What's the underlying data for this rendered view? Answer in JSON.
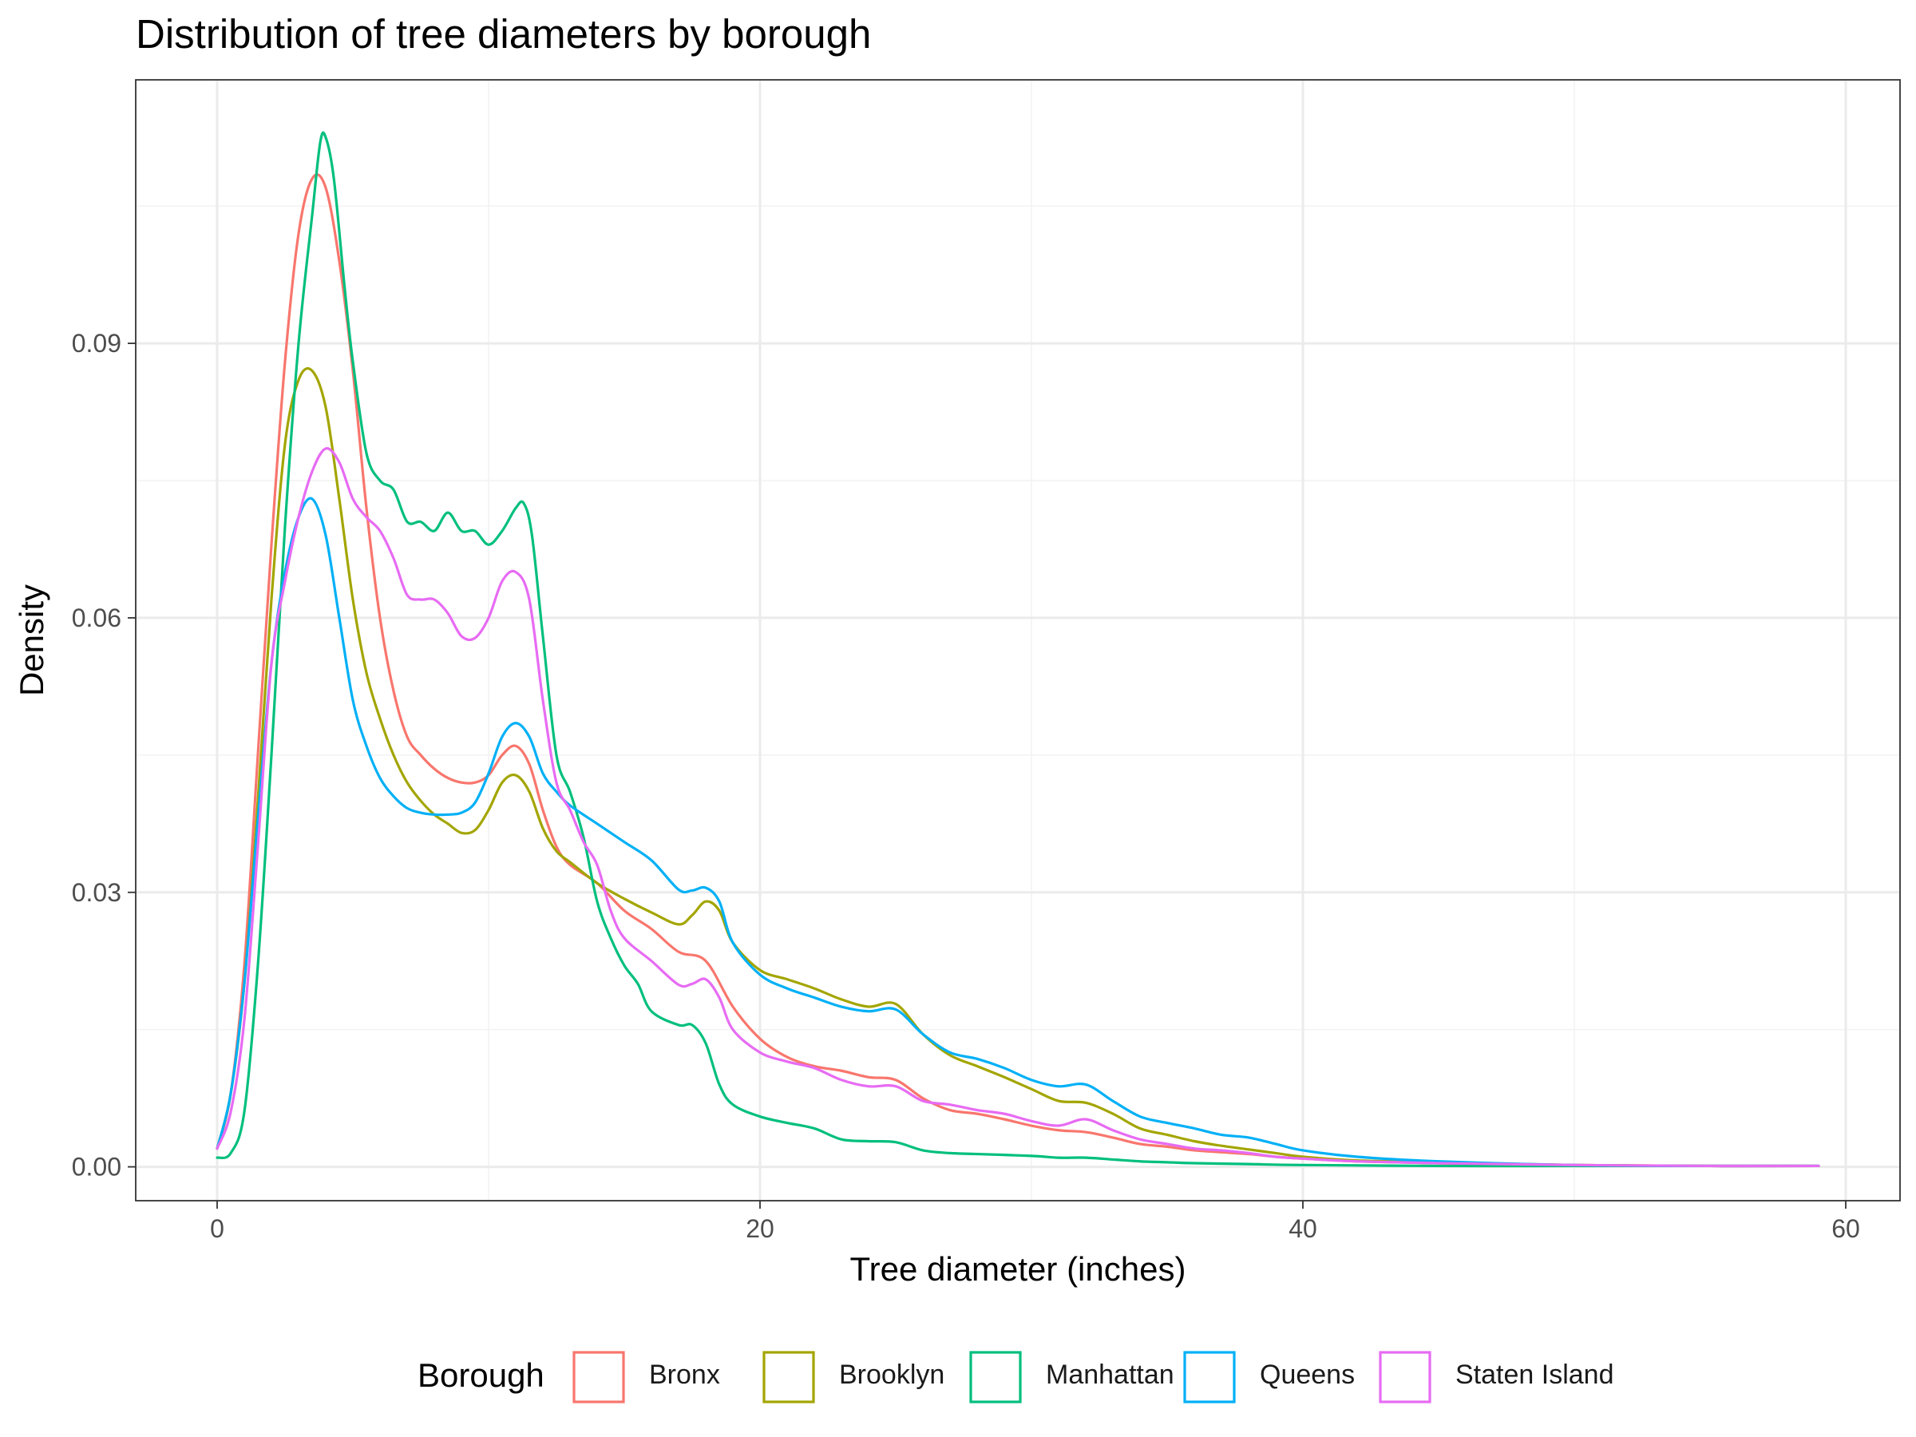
{
  "chart_data": {
    "type": "line",
    "title": "Distribution of tree diameters by borough",
    "xlabel": "Tree diameter (inches)",
    "ylabel": "Density",
    "xlim": [
      -3,
      62
    ],
    "ylim": [
      -0.0037,
      0.1188
    ],
    "x_ticks": [
      0,
      20,
      40,
      60
    ],
    "x_tick_labels": [
      "0",
      "20",
      "40",
      "60"
    ],
    "x_minor_ticks": [
      10,
      30,
      50
    ],
    "y_ticks": [
      0,
      0.03,
      0.06,
      0.09
    ],
    "y_tick_labels": [
      "0.00",
      "0.03",
      "0.06",
      "0.09"
    ],
    "y_minor_ticks": [
      0.015,
      0.045,
      0.075,
      0.105
    ],
    "grid": true,
    "legend": {
      "title": "Borough",
      "position": "bottom"
    },
    "series": [
      {
        "name": "Bronx",
        "color": "#F8766D",
        "points": [
          [
            0,
            0.002
          ],
          [
            0.5,
            0.008
          ],
          [
            1,
            0.022
          ],
          [
            1.5,
            0.045
          ],
          [
            2,
            0.068
          ],
          [
            2.5,
            0.088
          ],
          [
            3,
            0.102
          ],
          [
            3.5,
            0.108
          ],
          [
            4,
            0.107
          ],
          [
            4.5,
            0.099
          ],
          [
            5,
            0.087
          ],
          [
            5.5,
            0.072
          ],
          [
            6,
            0.06
          ],
          [
            6.5,
            0.052
          ],
          [
            7,
            0.047
          ],
          [
            7.5,
            0.045
          ],
          [
            8,
            0.0435
          ],
          [
            8.5,
            0.0425
          ],
          [
            9,
            0.042
          ],
          [
            9.5,
            0.042
          ],
          [
            10,
            0.0428
          ],
          [
            10.5,
            0.045
          ],
          [
            11,
            0.046
          ],
          [
            11.5,
            0.044
          ],
          [
            12,
            0.039
          ],
          [
            12.5,
            0.035
          ],
          [
            13,
            0.033
          ],
          [
            14,
            0.031
          ],
          [
            15,
            0.028
          ],
          [
            16,
            0.026
          ],
          [
            17,
            0.0235
          ],
          [
            18,
            0.0225
          ],
          [
            19,
            0.0175
          ],
          [
            20,
            0.014
          ],
          [
            21,
            0.012
          ],
          [
            22,
            0.011
          ],
          [
            23,
            0.0105
          ],
          [
            24,
            0.0098
          ],
          [
            25,
            0.0095
          ],
          [
            26,
            0.0075
          ],
          [
            27,
            0.0062
          ],
          [
            28,
            0.0058
          ],
          [
            29,
            0.0052
          ],
          [
            30,
            0.0045
          ],
          [
            31,
            0.004
          ],
          [
            32,
            0.0038
          ],
          [
            33,
            0.0032
          ],
          [
            34,
            0.0025
          ],
          [
            35,
            0.0022
          ],
          [
            36,
            0.0018
          ],
          [
            37,
            0.0016
          ],
          [
            38,
            0.0014
          ],
          [
            39,
            0.0011
          ],
          [
            40,
            0.0009
          ],
          [
            42,
            0.0006
          ],
          [
            45,
            0.0004
          ],
          [
            50,
            0.0002
          ],
          [
            55,
            0.0001
          ],
          [
            59,
            0.0001
          ]
        ]
      },
      {
        "name": "Brooklyn",
        "color": "#A3A500",
        "points": [
          [
            0,
            0.002
          ],
          [
            0.5,
            0.008
          ],
          [
            1,
            0.02
          ],
          [
            1.5,
            0.04
          ],
          [
            2,
            0.062
          ],
          [
            2.5,
            0.079
          ],
          [
            3,
            0.086
          ],
          [
            3.5,
            0.087
          ],
          [
            4,
            0.083
          ],
          [
            4.5,
            0.073
          ],
          [
            5,
            0.062
          ],
          [
            5.5,
            0.054
          ],
          [
            6,
            0.049
          ],
          [
            6.5,
            0.045
          ],
          [
            7,
            0.042
          ],
          [
            7.5,
            0.04
          ],
          [
            8,
            0.0385
          ],
          [
            8.5,
            0.0375
          ],
          [
            9,
            0.0365
          ],
          [
            9.5,
            0.0368
          ],
          [
            10,
            0.039
          ],
          [
            10.5,
            0.042
          ],
          [
            11,
            0.0428
          ],
          [
            11.5,
            0.041
          ],
          [
            12,
            0.037
          ],
          [
            12.5,
            0.0345
          ],
          [
            13,
            0.0333
          ],
          [
            14,
            0.031
          ],
          [
            15,
            0.0293
          ],
          [
            16,
            0.0278
          ],
          [
            17,
            0.0265
          ],
          [
            17.5,
            0.0275
          ],
          [
            18,
            0.029
          ],
          [
            18.5,
            0.028
          ],
          [
            19,
            0.0245
          ],
          [
            20,
            0.0215
          ],
          [
            21,
            0.0205
          ],
          [
            22,
            0.0195
          ],
          [
            23,
            0.0183
          ],
          [
            24,
            0.0175
          ],
          [
            25,
            0.0178
          ],
          [
            26,
            0.0145
          ],
          [
            27,
            0.0122
          ],
          [
            28,
            0.011
          ],
          [
            29,
            0.0098
          ],
          [
            30,
            0.0085
          ],
          [
            31,
            0.0072
          ],
          [
            32,
            0.007
          ],
          [
            33,
            0.0058
          ],
          [
            34,
            0.0042
          ],
          [
            35,
            0.0035
          ],
          [
            36,
            0.0028
          ],
          [
            37,
            0.0023
          ],
          [
            38,
            0.0019
          ],
          [
            39,
            0.0015
          ],
          [
            40,
            0.0011
          ],
          [
            42,
            0.0007
          ],
          [
            45,
            0.0005
          ],
          [
            50,
            0.0002
          ],
          [
            55,
            0.0001
          ],
          [
            59,
            0.0001
          ]
        ]
      },
      {
        "name": "Manhattan",
        "color": "#00BF7D",
        "points": [
          [
            0,
            0.001
          ],
          [
            0.5,
            0.0015
          ],
          [
            1,
            0.006
          ],
          [
            1.5,
            0.022
          ],
          [
            2,
            0.045
          ],
          [
            2.5,
            0.07
          ],
          [
            3,
            0.09
          ],
          [
            3.5,
            0.104
          ],
          [
            3.8,
            0.112
          ],
          [
            4,
            0.1125
          ],
          [
            4.3,
            0.108
          ],
          [
            4.7,
            0.096
          ],
          [
            5,
            0.088
          ],
          [
            5.5,
            0.078
          ],
          [
            6,
            0.075
          ],
          [
            6.5,
            0.074
          ],
          [
            7,
            0.0705
          ],
          [
            7.5,
            0.0705
          ],
          [
            8,
            0.0695
          ],
          [
            8.5,
            0.0715
          ],
          [
            9,
            0.0695
          ],
          [
            9.5,
            0.0695
          ],
          [
            10,
            0.068
          ],
          [
            10.5,
            0.0695
          ],
          [
            11,
            0.072
          ],
          [
            11.3,
            0.0725
          ],
          [
            11.6,
            0.069
          ],
          [
            12,
            0.058
          ],
          [
            12.5,
            0.045
          ],
          [
            13,
            0.041
          ],
          [
            13.5,
            0.036
          ],
          [
            14,
            0.029
          ],
          [
            14.5,
            0.025
          ],
          [
            15,
            0.022
          ],
          [
            15.5,
            0.02
          ],
          [
            16,
            0.017
          ],
          [
            17,
            0.0155
          ],
          [
            17.5,
            0.0155
          ],
          [
            18,
            0.0135
          ],
          [
            18.5,
            0.009
          ],
          [
            19,
            0.0068
          ],
          [
            20,
            0.0055
          ],
          [
            21,
            0.0048
          ],
          [
            22,
            0.0042
          ],
          [
            23,
            0.003
          ],
          [
            24,
            0.0028
          ],
          [
            25,
            0.0027
          ],
          [
            26,
            0.0018
          ],
          [
            27,
            0.0015
          ],
          [
            28,
            0.0014
          ],
          [
            30,
            0.0012
          ],
          [
            31,
            0.001
          ],
          [
            32,
            0.001
          ],
          [
            33,
            0.0008
          ],
          [
            34,
            0.0006
          ],
          [
            35,
            0.0005
          ],
          [
            36,
            0.0004
          ],
          [
            38,
            0.0003
          ],
          [
            40,
            0.0002
          ],
          [
            45,
            0.0001
          ],
          [
            50,
            0.0001
          ],
          [
            59,
            0.0001
          ]
        ]
      },
      {
        "name": "Queens",
        "color": "#00B0F6",
        "points": [
          [
            0,
            0.002
          ],
          [
            0.5,
            0.008
          ],
          [
            1,
            0.02
          ],
          [
            1.5,
            0.038
          ],
          [
            2,
            0.055
          ],
          [
            2.5,
            0.065
          ],
          [
            3,
            0.071
          ],
          [
            3.5,
            0.073
          ],
          [
            4,
            0.069
          ],
          [
            4.5,
            0.06
          ],
          [
            5,
            0.051
          ],
          [
            5.5,
            0.046
          ],
          [
            6,
            0.0425
          ],
          [
            6.5,
            0.0405
          ],
          [
            7,
            0.0392
          ],
          [
            7.5,
            0.0387
          ],
          [
            8,
            0.0385
          ],
          [
            8.5,
            0.0385
          ],
          [
            9,
            0.0387
          ],
          [
            9.5,
            0.0398
          ],
          [
            10,
            0.043
          ],
          [
            10.5,
            0.047
          ],
          [
            11,
            0.0485
          ],
          [
            11.5,
            0.047
          ],
          [
            12,
            0.043
          ],
          [
            12.5,
            0.041
          ],
          [
            13,
            0.0395
          ],
          [
            14,
            0.0375
          ],
          [
            15,
            0.0355
          ],
          [
            16,
            0.0335
          ],
          [
            17,
            0.0303
          ],
          [
            17.5,
            0.0302
          ],
          [
            18,
            0.0305
          ],
          [
            18.5,
            0.029
          ],
          [
            19,
            0.0245
          ],
          [
            20,
            0.021
          ],
          [
            21,
            0.0195
          ],
          [
            22,
            0.0185
          ],
          [
            23,
            0.0175
          ],
          [
            24,
            0.017
          ],
          [
            25,
            0.0172
          ],
          [
            26,
            0.0145
          ],
          [
            27,
            0.0125
          ],
          [
            28,
            0.0118
          ],
          [
            29,
            0.0108
          ],
          [
            30,
            0.0095
          ],
          [
            31,
            0.0088
          ],
          [
            32,
            0.009
          ],
          [
            33,
            0.0072
          ],
          [
            34,
            0.0055
          ],
          [
            35,
            0.0048
          ],
          [
            36,
            0.0042
          ],
          [
            37,
            0.0035
          ],
          [
            38,
            0.0032
          ],
          [
            39,
            0.0025
          ],
          [
            40,
            0.0018
          ],
          [
            42,
            0.0011
          ],
          [
            45,
            0.0006
          ],
          [
            50,
            0.0002
          ],
          [
            55,
            0.0001
          ],
          [
            59,
            0.0001
          ]
        ]
      },
      {
        "name": "Staten Island",
        "color": "#E76BF3",
        "points": [
          [
            0,
            0.002
          ],
          [
            0.5,
            0.006
          ],
          [
            1,
            0.016
          ],
          [
            1.5,
            0.035
          ],
          [
            2,
            0.055
          ],
          [
            2.5,
            0.064
          ],
          [
            3,
            0.071
          ],
          [
            3.5,
            0.076
          ],
          [
            4,
            0.0785
          ],
          [
            4.5,
            0.077
          ],
          [
            5,
            0.073
          ],
          [
            5.5,
            0.071
          ],
          [
            6,
            0.0695
          ],
          [
            6.5,
            0.0665
          ],
          [
            7,
            0.0625
          ],
          [
            7.5,
            0.062
          ],
          [
            8,
            0.062
          ],
          [
            8.5,
            0.0605
          ],
          [
            9,
            0.058
          ],
          [
            9.5,
            0.0578
          ],
          [
            10,
            0.06
          ],
          [
            10.5,
            0.064
          ],
          [
            11,
            0.065
          ],
          [
            11.5,
            0.062
          ],
          [
            12,
            0.051
          ],
          [
            12.5,
            0.042
          ],
          [
            13,
            0.039
          ],
          [
            13.5,
            0.0355
          ],
          [
            14,
            0.033
          ],
          [
            14.5,
            0.028
          ],
          [
            15,
            0.025
          ],
          [
            16,
            0.0225
          ],
          [
            17,
            0.0199
          ],
          [
            17.5,
            0.02
          ],
          [
            18,
            0.0205
          ],
          [
            18.5,
            0.0185
          ],
          [
            19,
            0.015
          ],
          [
            20,
            0.0125
          ],
          [
            21,
            0.0115
          ],
          [
            22,
            0.0108
          ],
          [
            23,
            0.0095
          ],
          [
            24,
            0.0088
          ],
          [
            25,
            0.0088
          ],
          [
            26,
            0.0072
          ],
          [
            27,
            0.0068
          ],
          [
            28,
            0.0062
          ],
          [
            29,
            0.0058
          ],
          [
            30,
            0.005
          ],
          [
            31,
            0.0045
          ],
          [
            32,
            0.0052
          ],
          [
            33,
            0.004
          ],
          [
            34,
            0.003
          ],
          [
            35,
            0.0025
          ],
          [
            36,
            0.002
          ],
          [
            37,
            0.0018
          ],
          [
            38,
            0.0015
          ],
          [
            39,
            0.0011
          ],
          [
            40,
            0.0009
          ],
          [
            42,
            0.0006
          ],
          [
            45,
            0.0004
          ],
          [
            50,
            0.0002
          ],
          [
            55,
            0.0001
          ],
          [
            59,
            0.0001
          ]
        ]
      }
    ]
  }
}
